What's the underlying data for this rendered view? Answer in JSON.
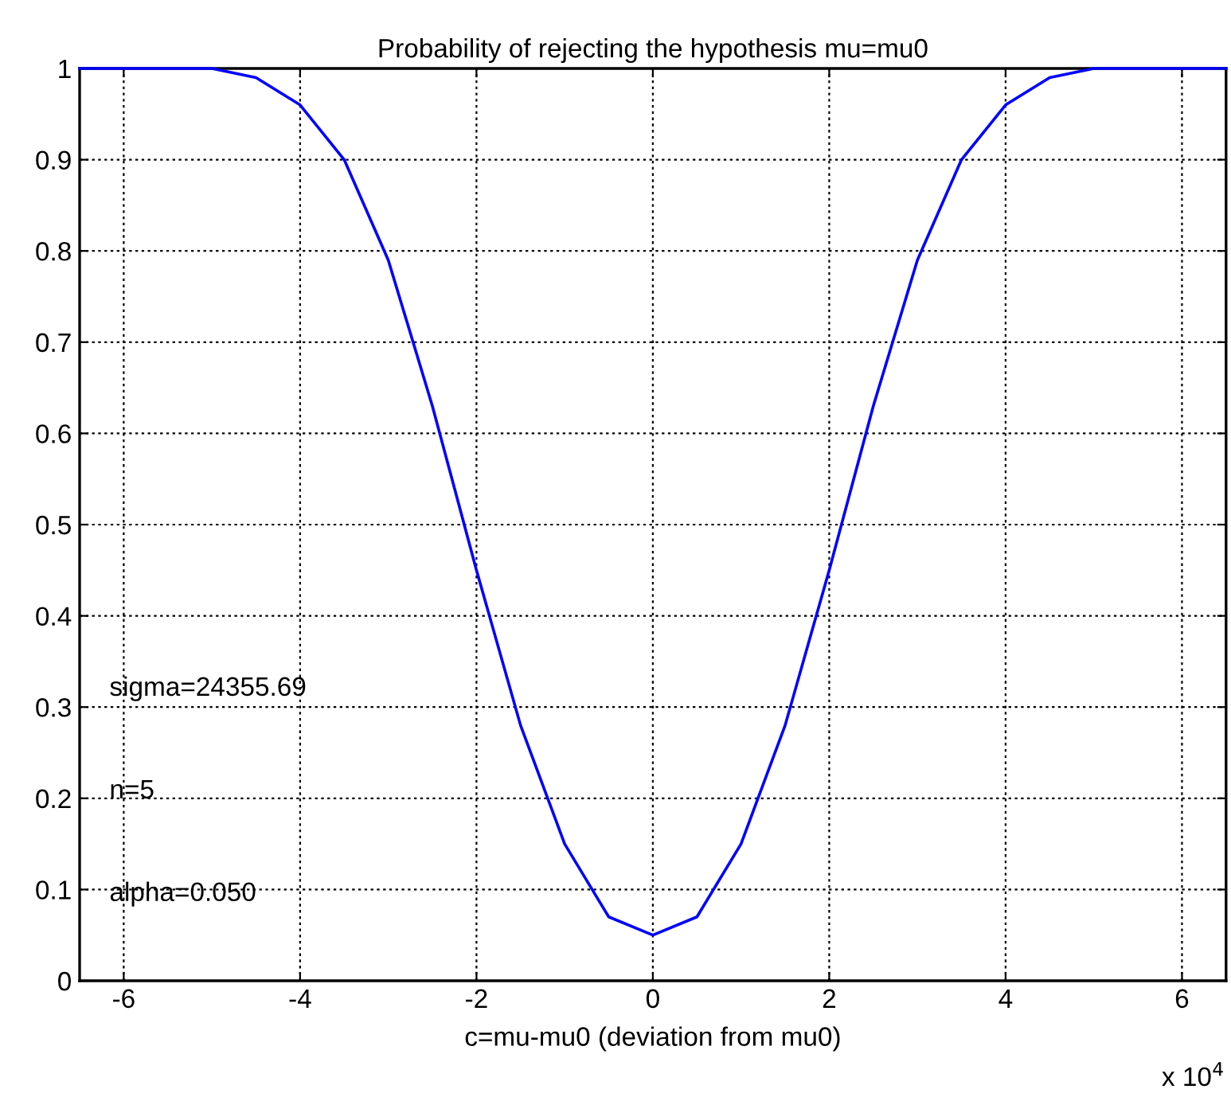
{
  "chart_data": {
    "type": "line",
    "title": "Probability of rejecting the hypothesis mu=mu0",
    "xlabel": "c=mu-mu0 (deviation from mu0)",
    "x": [
      -6.5,
      -6,
      -5.5,
      -5,
      -4.5,
      -4,
      -3.5,
      -3,
      -2.5,
      -2,
      -1.5,
      -1,
      -0.5,
      0,
      0.5,
      1,
      1.5,
      2,
      2.5,
      3,
      3.5,
      4,
      4.5,
      5,
      5.5,
      6,
      6.5
    ],
    "series": [
      {
        "color": "#0000ff",
        "values": [
          1,
          1,
          1,
          1,
          0.99,
          0.96,
          0.9,
          0.79,
          0.63,
          0.45,
          0.28,
          0.15,
          0.07,
          0.05,
          0.07,
          0.15,
          0.28,
          0.45,
          0.63,
          0.79,
          0.9,
          0.96,
          0.99,
          1,
          1,
          1,
          1
        ]
      }
    ],
    "xlim": [
      -6.5,
      6.5
    ],
    "xticks": [
      -6,
      -4,
      -2,
      0,
      2,
      4,
      6
    ],
    "ylim": [
      0,
      1
    ],
    "yticks": [
      0,
      0.1,
      0.2,
      0.3,
      0.4,
      0.5,
      0.6,
      0.7,
      0.8,
      0.9,
      1
    ],
    "grid": true,
    "line_style": "solid",
    "marker": "none",
    "annotations": [
      "sigma=24355.69",
      "n=5",
      "alpha=0.050",
      "x 10$^{4}$"
    ]
  }
}
